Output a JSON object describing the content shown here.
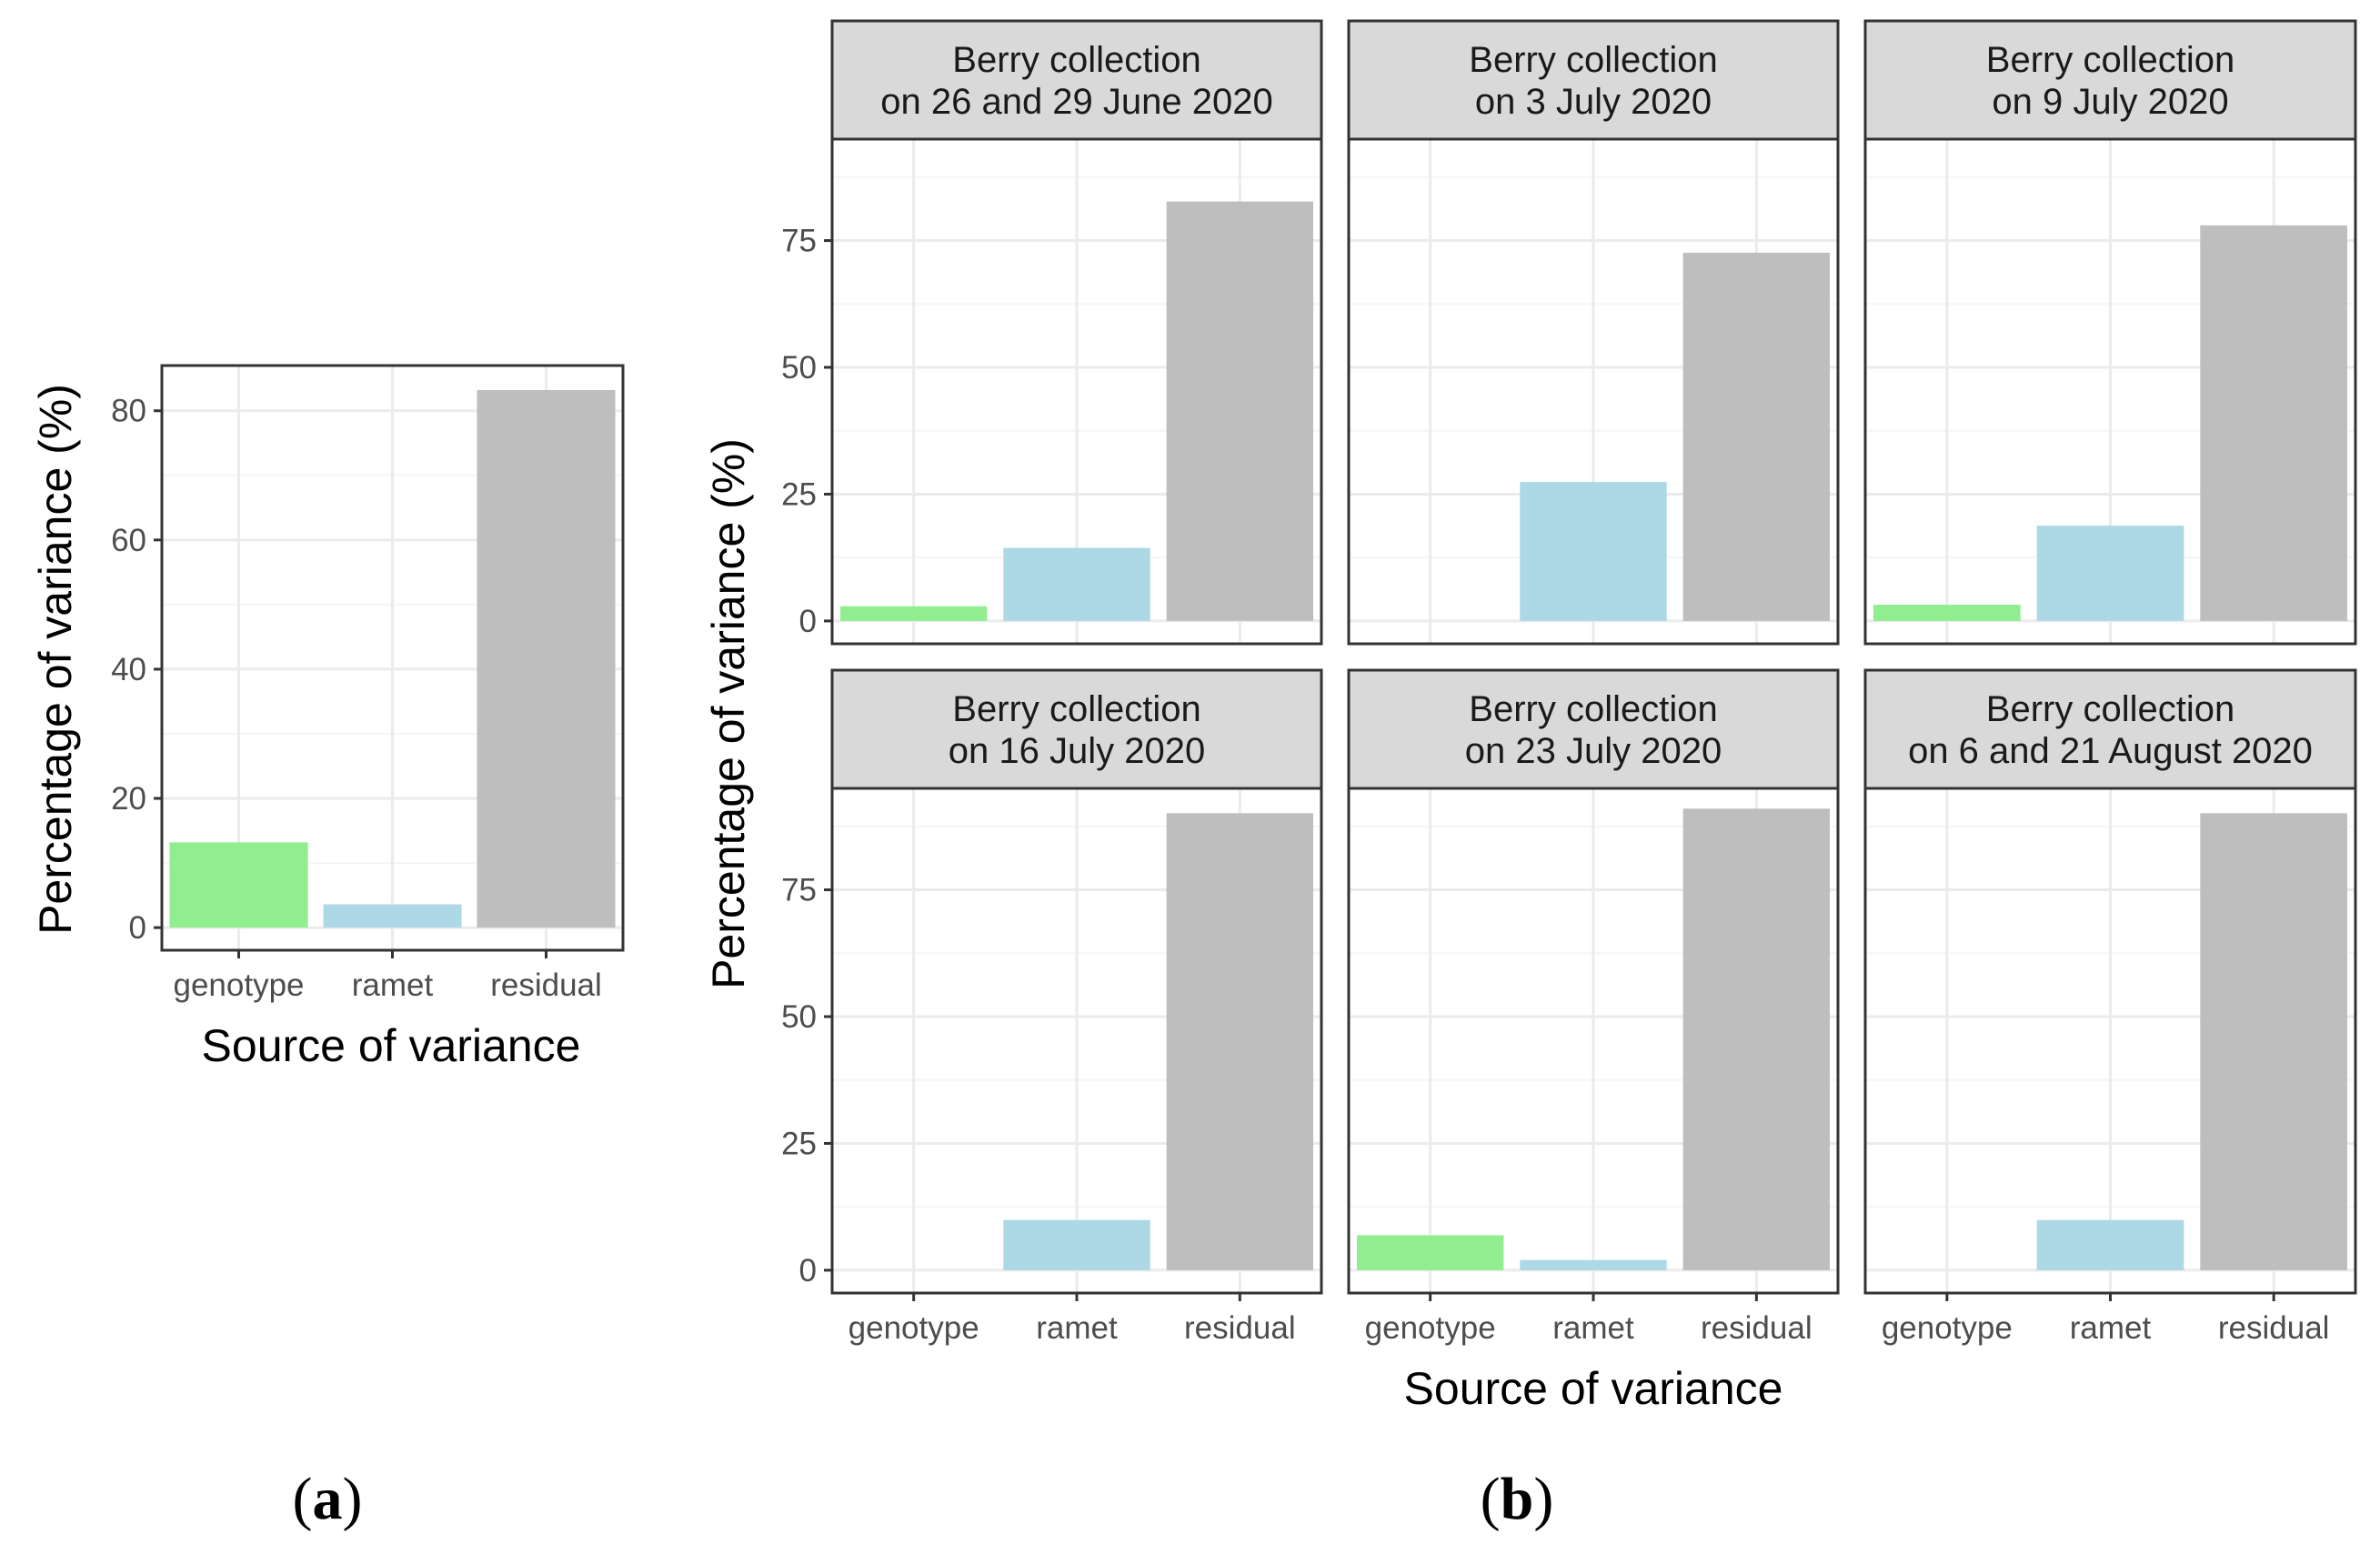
{
  "colors": {
    "genotype": "#90EE90",
    "ramet": "#ADD8E6",
    "residual": "#BEBEBE",
    "strip_bg": "#D9D9D9",
    "grid_major": "#EBEBEB",
    "grid_minor": "#F5F5F5",
    "border": "#333333"
  },
  "labels": {
    "panel_a": "a",
    "panel_b": "b",
    "panel_open": "(",
    "panel_close": ")"
  },
  "chart_data": [
    {
      "type": "bar",
      "panel": "a",
      "categories": [
        "genotype",
        "ramet",
        "residual"
      ],
      "values": [
        13.2,
        3.6,
        83.2
      ],
      "xlabel": "Source of variance",
      "ylabel": "Percentage of variance (%)",
      "ylim": [
        -3.5,
        87
      ],
      "yticks": [
        0,
        20,
        40,
        60,
        80
      ],
      "grid": true
    },
    {
      "type": "bar",
      "panel": "b",
      "layout": "facet grid 2 rows x 3 columns",
      "categories": [
        "genotype",
        "ramet",
        "residual"
      ],
      "xlabel": "Source of variance",
      "ylabel": "Percentage of variance (%)",
      "ylim": [
        -4.5,
        95
      ],
      "yticks": [
        0,
        25,
        50,
        75
      ],
      "grid": true,
      "facets": [
        {
          "title": [
            "Berry collection",
            "on 26 and 29 June 2020"
          ],
          "values": [
            2.9,
            14.4,
            82.7
          ]
        },
        {
          "title": [
            "Berry collection",
            "on 3 July 2020"
          ],
          "values": [
            0,
            27.4,
            72.6
          ]
        },
        {
          "title": [
            "Berry collection",
            "on 9 July 2020"
          ],
          "values": [
            3.2,
            18.8,
            78.0
          ]
        },
        {
          "title": [
            "Berry collection",
            "on 16 July 2020"
          ],
          "values": [
            0,
            9.9,
            90.1
          ]
        },
        {
          "title": [
            "Berry collection",
            "on 23 July 2020"
          ],
          "values": [
            6.9,
            2.0,
            91.0
          ]
        },
        {
          "title": [
            "Berry collection",
            "on 6 and 21 August 2020"
          ],
          "values": [
            0,
            9.9,
            90.1
          ]
        }
      ]
    }
  ]
}
